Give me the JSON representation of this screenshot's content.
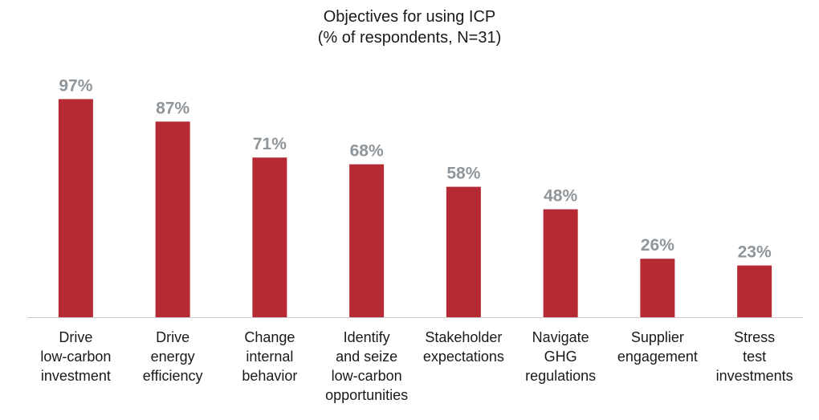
{
  "chart_data": {
    "type": "bar",
    "title": "Objectives for using ICP",
    "subtitle": "(% of respondents, N=31)",
    "categories": [
      [
        "Drive",
        "low-carbon",
        "investment"
      ],
      [
        "Drive",
        "energy",
        "efficiency"
      ],
      [
        "Change",
        "internal",
        "behavior"
      ],
      [
        "Identify",
        "and seize",
        "low-carbon",
        "opportunities"
      ],
      [
        "Stakeholder",
        "expectations"
      ],
      [
        "Navigate",
        "GHG",
        "regulations"
      ],
      [
        "Supplier",
        "engagement"
      ],
      [
        "Stress",
        "test",
        "investments"
      ]
    ],
    "values": [
      97,
      87,
      71,
      68,
      58,
      48,
      26,
      23
    ],
    "value_labels": [
      "97%",
      "87%",
      "71%",
      "68%",
      "58%",
      "48%",
      "26%",
      "23%"
    ],
    "ylim": [
      0,
      100
    ],
    "grid": false,
    "bar_color": "#b52a33",
    "label_color": "#8f969b"
  }
}
